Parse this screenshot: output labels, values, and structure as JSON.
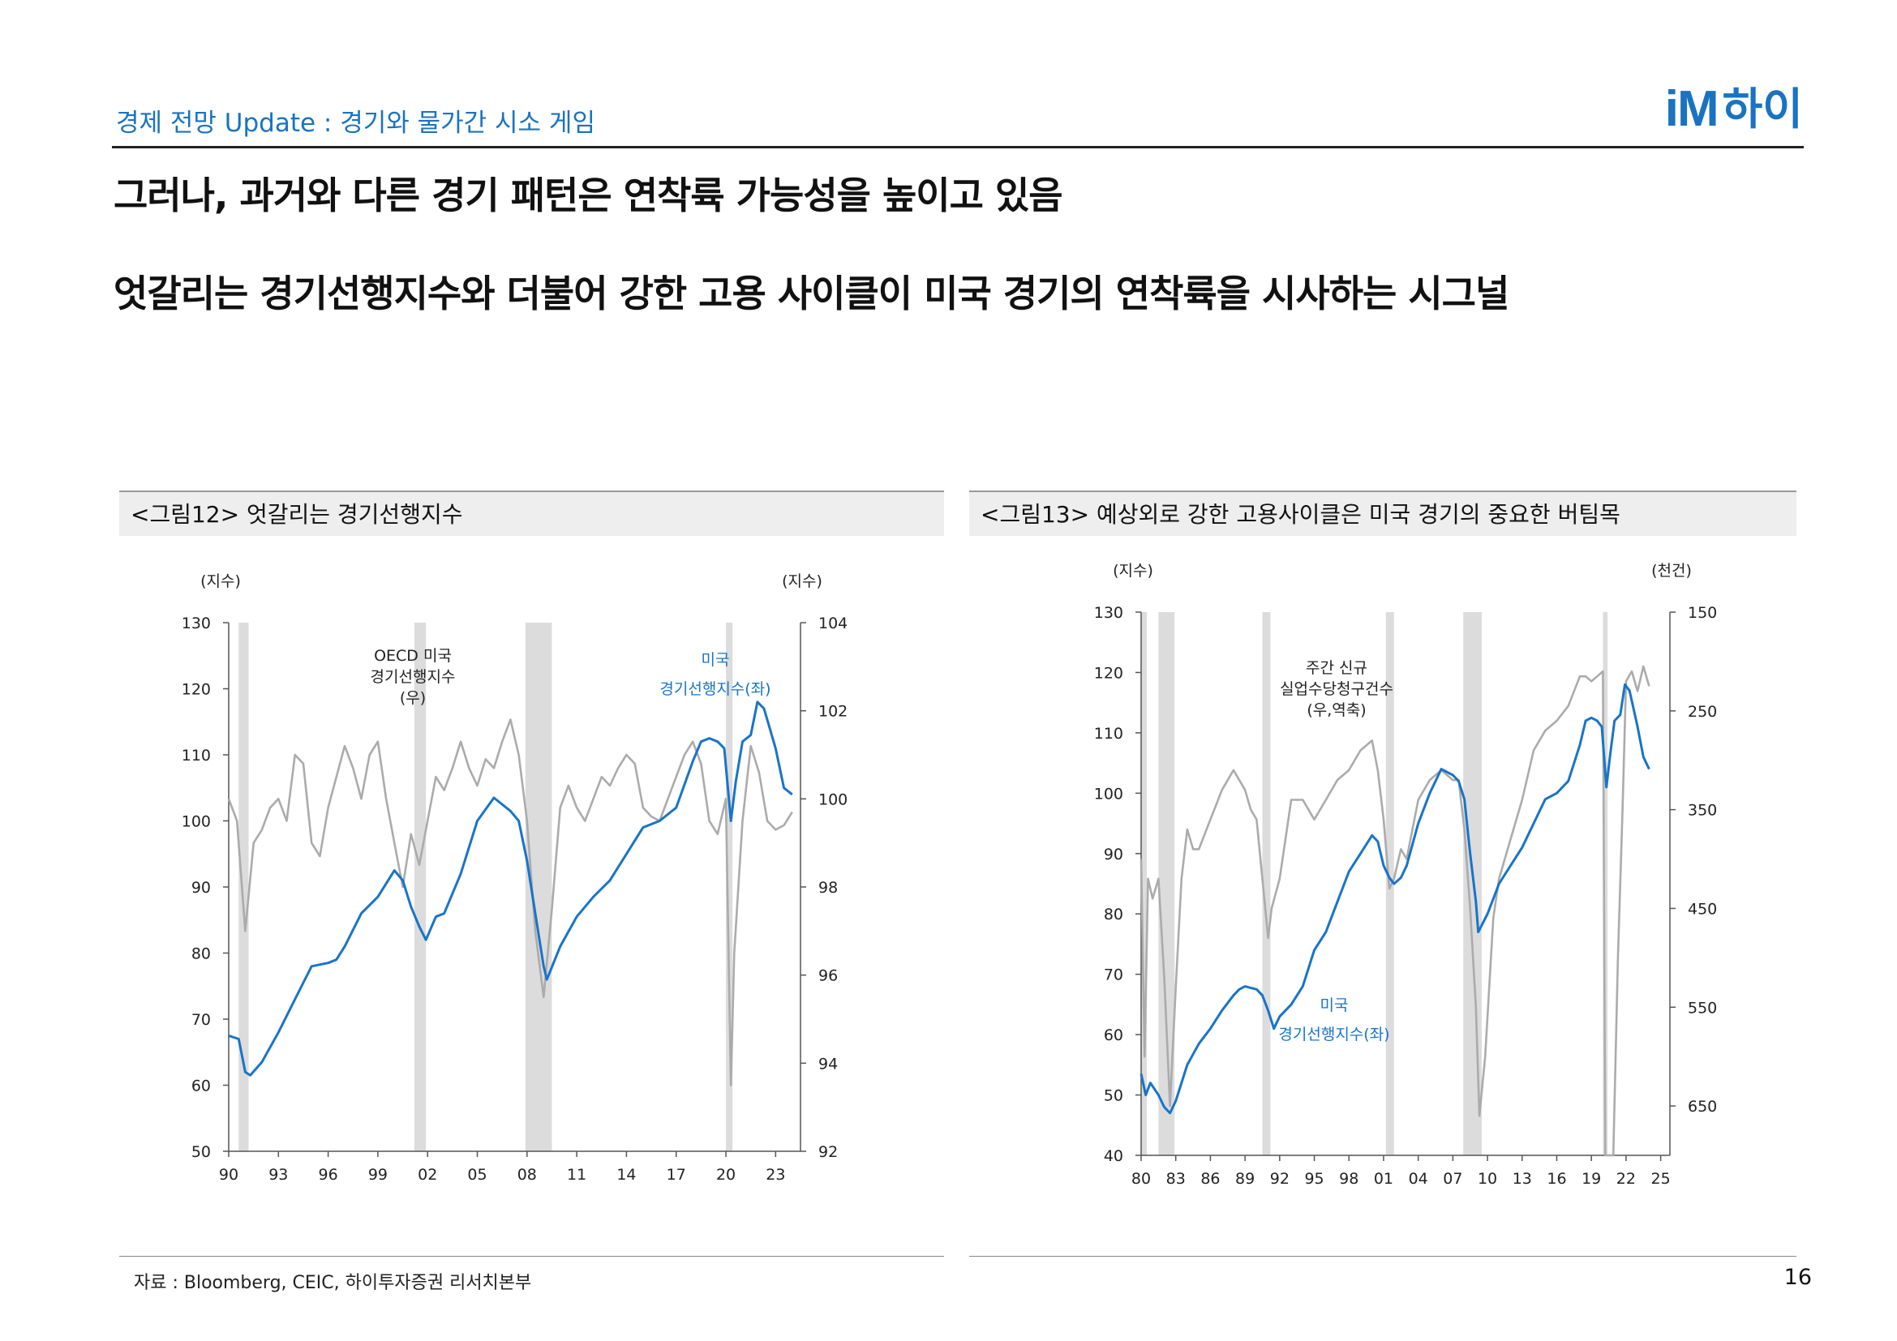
{
  "header": {
    "subtitle": "경제 전망 Update : 경기와 물가간 시소 게임",
    "logo_mark": "iM",
    "logo_text": "하이"
  },
  "headline1": "그러나, 과거와 다른 경기 패턴은 연착륙 가능성을 높이고 있음",
  "headline2": "엇갈리는 경기선행지수와 더불어 강한 고용 사이클이 미국 경기의 연착륙을 시사하는 시그널",
  "colors": {
    "blue": "#1874c8",
    "gray": "#ababab",
    "recession": "#dcdcdc"
  },
  "footer": {
    "source": "자료 : Bloomberg, CEIC, 하이투자증권 리서치본부",
    "page": "16"
  },
  "chart_data": [
    {
      "type": "line",
      "title": "<그림12> 엇갈리는 경기선행지수",
      "ylabel_left": "(지수)",
      "ylabel_right": "(지수)",
      "x_ticks": [
        "90",
        "93",
        "96",
        "99",
        "02",
        "05",
        "08",
        "11",
        "14",
        "17",
        "20",
        "23"
      ],
      "x_tick_years": [
        1990,
        1993,
        1996,
        1999,
        2002,
        2005,
        2008,
        2011,
        2014,
        2017,
        2020,
        2023
      ],
      "x_range": [
        1990,
        2024.5
      ],
      "y_left": {
        "min": 50,
        "max": 130,
        "ticks": [
          "50",
          "60",
          "70",
          "80",
          "90",
          "100",
          "110",
          "120",
          "130"
        ]
      },
      "y_right": {
        "min": 92,
        "max": 104,
        "ticks": [
          "92",
          "94",
          "96",
          "98",
          "100",
          "102",
          "104"
        ]
      },
      "recessions": [
        [
          1990.6,
          1991.2
        ],
        [
          2001.2,
          2001.9
        ],
        [
          2007.9,
          2009.5
        ],
        [
          2020.0,
          2020.4
        ]
      ],
      "annotations": {
        "gray_label": [
          "OECD 미국",
          "경기선행지수",
          "(우)"
        ],
        "blue_label": [
          "미국",
          "경기선행지수(좌)"
        ]
      },
      "series": [
        {
          "name": "미국 경기선행지수(좌)",
          "axis": "left",
          "color": "#1874c8",
          "x": [
            1990.0,
            1990.6,
            1991.0,
            1991.3,
            1992.0,
            1993.0,
            1994.0,
            1995.0,
            1996.0,
            1996.5,
            1997.0,
            1998.0,
            1999.0,
            2000.0,
            2000.5,
            2001.0,
            2001.5,
            2001.9,
            2002.5,
            2003.0,
            2004.0,
            2005.0,
            2006.0,
            2007.0,
            2007.5,
            2008.0,
            2008.5,
            2009.0,
            2009.2,
            2010.0,
            2011.0,
            2012.0,
            2013.0,
            2014.0,
            2015.0,
            2016.0,
            2017.0,
            2018.0,
            2018.5,
            2019.0,
            2019.5,
            2019.9,
            2020.3,
            2020.6,
            2021.0,
            2021.5,
            2021.9,
            2022.3,
            2023.0,
            2023.5,
            2024.0
          ],
          "values": [
            67.5,
            67,
            62,
            61.5,
            63.5,
            68,
            73,
            78,
            78.5,
            79,
            81,
            86,
            88.5,
            92.5,
            91,
            87,
            84,
            82,
            85.5,
            86,
            92,
            100,
            103.5,
            101.5,
            100,
            94,
            86,
            78,
            76,
            81,
            85.5,
            88.5,
            91,
            95,
            99,
            100,
            102,
            109,
            112,
            112.5,
            112,
            111,
            100,
            106,
            112,
            113,
            118,
            117,
            111,
            105,
            104
          ]
        },
        {
          "name": "OECD 미국 경기선행지수(우)",
          "axis": "right",
          "color": "#ababab",
          "x": [
            1990.0,
            1990.5,
            1991.0,
            1991.5,
            1992.0,
            1992.5,
            1993.0,
            1993.5,
            1994.0,
            1994.5,
            1995.0,
            1995.5,
            1996.0,
            1996.5,
            1997.0,
            1997.5,
            1998.0,
            1998.5,
            1999.0,
            1999.5,
            2000.0,
            2000.5,
            2001.0,
            2001.5,
            2002.0,
            2002.5,
            2003.0,
            2003.5,
            2004.0,
            2004.5,
            2005.0,
            2005.5,
            2006.0,
            2006.5,
            2007.0,
            2007.5,
            2008.0,
            2008.5,
            2009.0,
            2009.5,
            2010.0,
            2010.5,
            2011.0,
            2011.5,
            2012.0,
            2012.5,
            2013.0,
            2013.5,
            2014.0,
            2014.5,
            2015.0,
            2015.5,
            2016.0,
            2016.5,
            2017.0,
            2017.5,
            2018.0,
            2018.5,
            2019.0,
            2019.5,
            2020.0,
            2020.3,
            2020.5,
            2021.0,
            2021.5,
            2022.0,
            2022.5,
            2023.0,
            2023.5,
            2024.0
          ],
          "values": [
            100,
            99.5,
            97,
            99,
            99.3,
            99.8,
            100,
            99.5,
            101,
            100.8,
            99,
            98.7,
            99.8,
            100.5,
            101.2,
            100.7,
            100,
            101,
            101.3,
            100,
            99,
            98,
            99.2,
            98.5,
            99.5,
            100.5,
            100.2,
            100.7,
            101.3,
            100.7,
            100.3,
            100.9,
            100.7,
            101.3,
            101.8,
            101,
            99.5,
            97,
            95.5,
            97.5,
            99.8,
            100.3,
            99.8,
            99.5,
            100,
            100.5,
            100.3,
            100.7,
            101,
            100.8,
            99.8,
            99.6,
            99.5,
            100,
            100.5,
            101,
            101.3,
            100.8,
            99.5,
            99.2,
            100,
            93.5,
            96.5,
            99.5,
            101.2,
            100.6,
            99.5,
            99.3,
            99.4,
            99.7
          ]
        }
      ]
    },
    {
      "type": "line",
      "title": "<그림13> 예상외로 강한 고용사이클은 미국 경기의 중요한 버팀목",
      "ylabel_left": "(지수)",
      "ylabel_right": "(천건)",
      "x_ticks": [
        "80",
        "83",
        "86",
        "89",
        "92",
        "95",
        "98",
        "01",
        "04",
        "07",
        "10",
        "13",
        "16",
        "19",
        "22",
        "25"
      ],
      "x_tick_years": [
        1980,
        1983,
        1986,
        1989,
        1992,
        1995,
        1998,
        2001,
        2004,
        2007,
        2010,
        2013,
        2016,
        2019,
        2022,
        2025
      ],
      "x_range": [
        1980,
        2025.8
      ],
      "y_left": {
        "min": 40,
        "max": 130,
        "ticks": [
          "40",
          "50",
          "60",
          "70",
          "80",
          "90",
          "100",
          "110",
          "120",
          "130"
        ]
      },
      "y_right": {
        "top": 150,
        "bottom": 700,
        "inverted": true,
        "ticks": [
          "150",
          "250",
          "350",
          "450",
          "550",
          "650"
        ]
      },
      "recessions": [
        [
          1980.0,
          1980.5
        ],
        [
          1981.5,
          1982.9
        ],
        [
          1990.5,
          1991.2
        ],
        [
          2001.2,
          2001.9
        ],
        [
          2007.9,
          2009.5
        ],
        [
          2020.0,
          2020.4
        ]
      ],
      "annotations": {
        "gray_label": [
          "주간 신규",
          "실업수당청구건수",
          "(우,역축)"
        ],
        "blue_label": [
          "미국",
          "경기선행지수(좌)"
        ]
      },
      "series": [
        {
          "name": "미국 경기선행지수(좌)",
          "axis": "left",
          "color": "#1874c8",
          "x": [
            1980.0,
            1980.4,
            1980.8,
            1981.5,
            1982.0,
            1982.5,
            1983.0,
            1984.0,
            1985.0,
            1986.0,
            1987.0,
            1988.0,
            1988.5,
            1989.0,
            1990.0,
            1990.5,
            1991.0,
            1991.5,
            1992.0,
            1993.0,
            1994.0,
            1995.0,
            1996.0,
            1997.0,
            1998.0,
            1999.0,
            2000.0,
            2000.5,
            2001.0,
            2001.5,
            2001.9,
            2002.5,
            2003.0,
            2004.0,
            2005.0,
            2006.0,
            2007.0,
            2007.5,
            2008.0,
            2008.5,
            2009.0,
            2009.2,
            2010.0,
            2011.0,
            2012.0,
            2013.0,
            2014.0,
            2015.0,
            2016.0,
            2017.0,
            2018.0,
            2018.5,
            2019.0,
            2019.5,
            2019.9,
            2020.3,
            2020.6,
            2021.0,
            2021.5,
            2021.9,
            2022.3,
            2023.0,
            2023.5,
            2024.0
          ],
          "values": [
            53.5,
            50,
            52,
            50,
            48,
            47,
            49,
            55,
            58.5,
            61,
            64,
            66.5,
            67.5,
            68,
            67.5,
            66.5,
            64,
            61,
            63,
            65,
            68,
            74,
            77,
            82,
            87,
            90,
            93,
            92,
            88,
            86,
            85,
            86,
            88,
            95,
            100,
            104,
            103,
            102,
            99,
            90,
            82,
            77,
            80,
            85,
            88,
            91,
            95,
            99,
            100,
            102,
            108,
            112,
            112.5,
            112,
            111,
            101,
            106,
            112,
            113,
            118,
            117,
            111,
            106,
            104
          ]
        },
        {
          "name": "주간 신규 실업수당청구건수(우,역축)",
          "axis": "right",
          "color": "#ababab",
          "x": [
            1980.0,
            1980.3,
            1980.6,
            1981.0,
            1981.5,
            1982.0,
            1982.5,
            1983.0,
            1983.5,
            1984.0,
            1984.5,
            1985.0,
            1986.0,
            1987.0,
            1988.0,
            1989.0,
            1989.5,
            1990.0,
            1990.5,
            1991.0,
            1991.3,
            1992.0,
            1993.0,
            1994.0,
            1995.0,
            1996.0,
            1997.0,
            1998.0,
            1999.0,
            2000.0,
            2000.5,
            2001.0,
            2001.5,
            2001.9,
            2002.5,
            2003.0,
            2004.0,
            2005.0,
            2006.0,
            2007.0,
            2007.5,
            2008.0,
            2008.5,
            2009.0,
            2009.3,
            2009.8,
            2010.5,
            2011.0,
            2012.0,
            2013.0,
            2014.0,
            2015.0,
            2016.0,
            2017.0,
            2018.0,
            2018.5,
            2019.0,
            2019.5,
            2020.0,
            2020.2,
            2020.4,
            2020.6,
            2020.9,
            2021.3,
            2021.7,
            2022.0,
            2022.5,
            2023.0,
            2023.5,
            2024.0
          ],
          "values": [
            400,
            600,
            420,
            440,
            420,
            520,
            650,
            530,
            420,
            370,
            390,
            390,
            360,
            330,
            310,
            330,
            350,
            360,
            420,
            480,
            450,
            420,
            340,
            340,
            360,
            340,
            320,
            310,
            290,
            280,
            310,
            360,
            430,
            420,
            390,
            400,
            340,
            320,
            310,
            320,
            320,
            370,
            450,
            550,
            660,
            600,
            460,
            420,
            380,
            340,
            290,
            270,
            260,
            245,
            215,
            215,
            220,
            215,
            210,
            1500,
            1200,
            800,
            750,
            500,
            350,
            220,
            210,
            230,
            205,
            225
          ]
        }
      ]
    }
  ]
}
